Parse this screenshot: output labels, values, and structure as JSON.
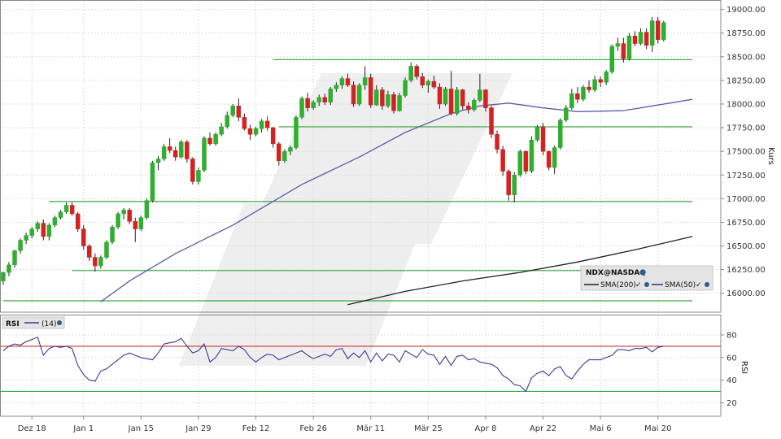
{
  "chart_data": [
    {
      "type": "candlestick",
      "symbol": "NDX@NASDAQ",
      "ylabel": "Kurs",
      "ylim": [
        15800,
        19100
      ],
      "yticks": [
        16000,
        16250,
        16500,
        16750,
        17000,
        17250,
        17500,
        17750,
        18000,
        18250,
        18500,
        18750,
        19000
      ],
      "ytick_labels": [
        "16000.00",
        "16250.00",
        "16500.00",
        "16750.00",
        "17000.00",
        "17250.00",
        "17500.00",
        "17750.00",
        "18000.00",
        "18250.00",
        "18500.00",
        "18750.00",
        "19000.00"
      ],
      "x_ticks": [
        {
          "label": "Dez 18",
          "index": 5
        },
        {
          "label": "Jan 1",
          "index": 14
        },
        {
          "label": "Jan 15",
          "index": 24
        },
        {
          "label": "Jan 29",
          "index": 34
        },
        {
          "label": "Feb 12",
          "index": 44
        },
        {
          "label": "Feb 26",
          "index": 54
        },
        {
          "label": "Mär 11",
          "index": 64
        },
        {
          "label": "Mär 25",
          "index": 74
        },
        {
          "label": "Apr 8",
          "index": 84
        },
        {
          "label": "Apr 22",
          "index": 94
        },
        {
          "label": "Mai 6",
          "index": 104
        },
        {
          "label": "Mai 20",
          "index": 114
        }
      ],
      "candles": [
        [
          16130,
          16230,
          16090,
          16220
        ],
        [
          16220,
          16330,
          16180,
          16300
        ],
        [
          16300,
          16460,
          16270,
          16450
        ],
        [
          16450,
          16580,
          16420,
          16560
        ],
        [
          16560,
          16640,
          16520,
          16610
        ],
        [
          16610,
          16700,
          16580,
          16680
        ],
        [
          16680,
          16760,
          16650,
          16740
        ],
        [
          16740,
          16780,
          16560,
          16600
        ],
        [
          16600,
          16740,
          16560,
          16720
        ],
        [
          16720,
          16820,
          16700,
          16800
        ],
        [
          16800,
          16880,
          16780,
          16860
        ],
        [
          16860,
          16960,
          16840,
          16930
        ],
        [
          16930,
          16960,
          16820,
          16840
        ],
        [
          16840,
          16860,
          16650,
          16680
        ],
        [
          16680,
          16720,
          16460,
          16500
        ],
        [
          16500,
          16520,
          16340,
          16380
        ],
        [
          16380,
          16420,
          16230,
          16290
        ],
        [
          16290,
          16400,
          16260,
          16380
        ],
        [
          16380,
          16560,
          16360,
          16540
        ],
        [
          16540,
          16720,
          16520,
          16700
        ],
        [
          16700,
          16860,
          16680,
          16840
        ],
        [
          16840,
          16900,
          16780,
          16880
        ],
        [
          16880,
          16900,
          16730,
          16760
        ],
        [
          16760,
          16800,
          16540,
          16680
        ],
        [
          16680,
          16820,
          16660,
          16800
        ],
        [
          16800,
          17000,
          16780,
          16980
        ],
        [
          16980,
          17400,
          16960,
          17380
        ],
        [
          17380,
          17450,
          17300,
          17420
        ],
        [
          17420,
          17580,
          17400,
          17550
        ],
        [
          17550,
          17640,
          17480,
          17510
        ],
        [
          17510,
          17550,
          17400,
          17440
        ],
        [
          17440,
          17620,
          17420,
          17600
        ],
        [
          17600,
          17620,
          17380,
          17420
        ],
        [
          17420,
          17440,
          17150,
          17180
        ],
        [
          17180,
          17330,
          17150,
          17300
        ],
        [
          17300,
          17660,
          17280,
          17640
        ],
        [
          17640,
          17700,
          17560,
          17580
        ],
        [
          17580,
          17700,
          17560,
          17680
        ],
        [
          17680,
          17800,
          17660,
          17760
        ],
        [
          17760,
          17920,
          17740,
          17880
        ],
        [
          17880,
          18000,
          17860,
          17980
        ],
        [
          17980,
          18060,
          17820,
          17860
        ],
        [
          17860,
          17900,
          17720,
          17740
        ],
        [
          17740,
          17780,
          17620,
          17680
        ],
        [
          17680,
          17760,
          17660,
          17740
        ],
        [
          17740,
          17840,
          17700,
          17820
        ],
        [
          17820,
          17870,
          17720,
          17750
        ],
        [
          17750,
          17760,
          17540,
          17580
        ],
        [
          17580,
          17600,
          17350,
          17400
        ],
        [
          17400,
          17520,
          17380,
          17500
        ],
        [
          17500,
          17560,
          17460,
          17540
        ],
        [
          17540,
          17880,
          17520,
          17860
        ],
        [
          17860,
          18080,
          17840,
          18060
        ],
        [
          18060,
          18120,
          17920,
          17960
        ],
        [
          17960,
          18040,
          17940,
          18020
        ],
        [
          18020,
          18100,
          17980,
          18070
        ],
        [
          18070,
          18110,
          17990,
          18020
        ],
        [
          18020,
          18180,
          17990,
          18160
        ],
        [
          18160,
          18230,
          18130,
          18200
        ],
        [
          18200,
          18290,
          18160,
          18270
        ],
        [
          18270,
          18320,
          18180,
          18200
        ],
        [
          18200,
          18240,
          17970,
          18000
        ],
        [
          18000,
          18220,
          17980,
          18200
        ],
        [
          18200,
          18400,
          18150,
          18280
        ],
        [
          18280,
          18320,
          17960,
          17990
        ],
        [
          17990,
          18200,
          17980,
          18150
        ],
        [
          18150,
          18180,
          17940,
          17980
        ],
        [
          17980,
          18140,
          17960,
          18100
        ],
        [
          18100,
          18130,
          17900,
          17930
        ],
        [
          17930,
          18120,
          17920,
          18090
        ],
        [
          18090,
          18280,
          18070,
          18250
        ],
        [
          18250,
          18440,
          18230,
          18400
        ],
        [
          18400,
          18420,
          18260,
          18290
        ],
        [
          18290,
          18330,
          18170,
          18200
        ],
        [
          18200,
          18260,
          18120,
          18240
        ],
        [
          18240,
          18300,
          18160,
          18180
        ],
        [
          18180,
          18220,
          17950,
          18000
        ],
        [
          18000,
          18180,
          17980,
          18160
        ],
        [
          18160,
          18350,
          17880,
          17900
        ],
        [
          17900,
          18180,
          17880,
          18150
        ],
        [
          18150,
          18160,
          17940,
          17980
        ],
        [
          17980,
          18020,
          17900,
          17940
        ],
        [
          17940,
          18060,
          17920,
          18040
        ],
        [
          18040,
          18320,
          18020,
          18150
        ],
        [
          18150,
          18160,
          17920,
          17960
        ],
        [
          17960,
          17980,
          17640,
          17680
        ],
        [
          17680,
          17720,
          17480,
          17520
        ],
        [
          17520,
          17560,
          17240,
          17290
        ],
        [
          17290,
          17310,
          16980,
          17040
        ],
        [
          17040,
          17280,
          16960,
          17250
        ],
        [
          17250,
          17520,
          17230,
          17500
        ],
        [
          17500,
          17510,
          17260,
          17290
        ],
        [
          17290,
          17660,
          17270,
          17620
        ],
        [
          17620,
          17780,
          17600,
          17760
        ],
        [
          17760,
          17800,
          17460,
          17500
        ],
        [
          17500,
          17510,
          17300,
          17330
        ],
        [
          17330,
          17560,
          17260,
          17540
        ],
        [
          17540,
          17850,
          17520,
          17830
        ],
        [
          17830,
          17990,
          17810,
          17960
        ],
        [
          17960,
          18160,
          17940,
          18110
        ],
        [
          18110,
          18180,
          18010,
          18050
        ],
        [
          18050,
          18200,
          18030,
          18180
        ],
        [
          18180,
          18250,
          18120,
          18150
        ],
        [
          18150,
          18300,
          18130,
          18260
        ],
        [
          18260,
          18290,
          18180,
          18230
        ],
        [
          18230,
          18360,
          18200,
          18340
        ],
        [
          18340,
          18630,
          18320,
          18610
        ],
        [
          18610,
          18700,
          18560,
          18640
        ],
        [
          18640,
          18700,
          18440,
          18480
        ],
        [
          18480,
          18750,
          18460,
          18720
        ],
        [
          18720,
          18770,
          18610,
          18640
        ],
        [
          18640,
          18800,
          18620,
          18760
        ],
        [
          18760,
          18800,
          18580,
          18620
        ],
        [
          18620,
          18920,
          18550,
          18880
        ],
        [
          18880,
          18920,
          18640,
          18680
        ],
        [
          18680,
          18880,
          18660,
          18860
        ]
      ],
      "sma50": {
        "name": "SMA(50)",
        "color": "#5b5ba6",
        "points": [
          [
            17,
            15910
          ],
          [
            22,
            16130
          ],
          [
            30,
            16420
          ],
          [
            40,
            16720
          ],
          [
            52,
            17150
          ],
          [
            62,
            17440
          ],
          [
            70,
            17700
          ],
          [
            78,
            17900
          ],
          [
            83,
            17980
          ],
          [
            88,
            18010
          ],
          [
            94,
            17960
          ],
          [
            100,
            17920
          ],
          [
            108,
            17930
          ],
          [
            114,
            17990
          ],
          [
            120,
            18050
          ]
        ]
      },
      "sma200": {
        "name": "SMA(200)",
        "color": "#222222",
        "points": [
          [
            60,
            15880
          ],
          [
            70,
            16020
          ],
          [
            80,
            16130
          ],
          [
            90,
            16220
          ],
          [
            100,
            16330
          ],
          [
            110,
            16460
          ],
          [
            120,
            16600
          ]
        ]
      },
      "support_levels": [
        {
          "y": 18470,
          "from": 47,
          "to": 120
        },
        {
          "y": 17760,
          "from": 48,
          "to": 120
        },
        {
          "y": 16970,
          "from": 8,
          "to": 120
        },
        {
          "y": 16240,
          "from": 12,
          "to": 120
        },
        {
          "y": 15920,
          "from": 0,
          "to": 120
        }
      ],
      "legend": {
        "title": "NDX@NASDAQ",
        "items": [
          "SMA(200)",
          "SMA(50)"
        ]
      }
    },
    {
      "type": "line",
      "title": "RSI",
      "series_name": "(14)",
      "ylabel": "RSI",
      "ylim": [
        8,
        98
      ],
      "yticks": [
        20,
        40,
        60,
        80
      ],
      "levels": [
        70,
        30
      ],
      "values": [
        66,
        70,
        72,
        71,
        74,
        76,
        78,
        62,
        68,
        70,
        69,
        70,
        68,
        53,
        45,
        40,
        39,
        48,
        50,
        54,
        58,
        62,
        64,
        62,
        60,
        59,
        58,
        64,
        72,
        73,
        74,
        77,
        70,
        64,
        66,
        72,
        56,
        60,
        68,
        67,
        66,
        70,
        67,
        60,
        56,
        60,
        63,
        62,
        58,
        60,
        62,
        64,
        66,
        62,
        59,
        61,
        63,
        61,
        67,
        68,
        59,
        64,
        60,
        66,
        56,
        64,
        57,
        63,
        62,
        56,
        66,
        63,
        60,
        67,
        63,
        62,
        54,
        61,
        53,
        61,
        62,
        58,
        59,
        56,
        55,
        54,
        51,
        44,
        41,
        36,
        35,
        30,
        42,
        46,
        48,
        44,
        50,
        52,
        44,
        41,
        48,
        54,
        58,
        58,
        58,
        60,
        62,
        67,
        67,
        66,
        68,
        68,
        69,
        65,
        69,
        70
      ]
    }
  ]
}
